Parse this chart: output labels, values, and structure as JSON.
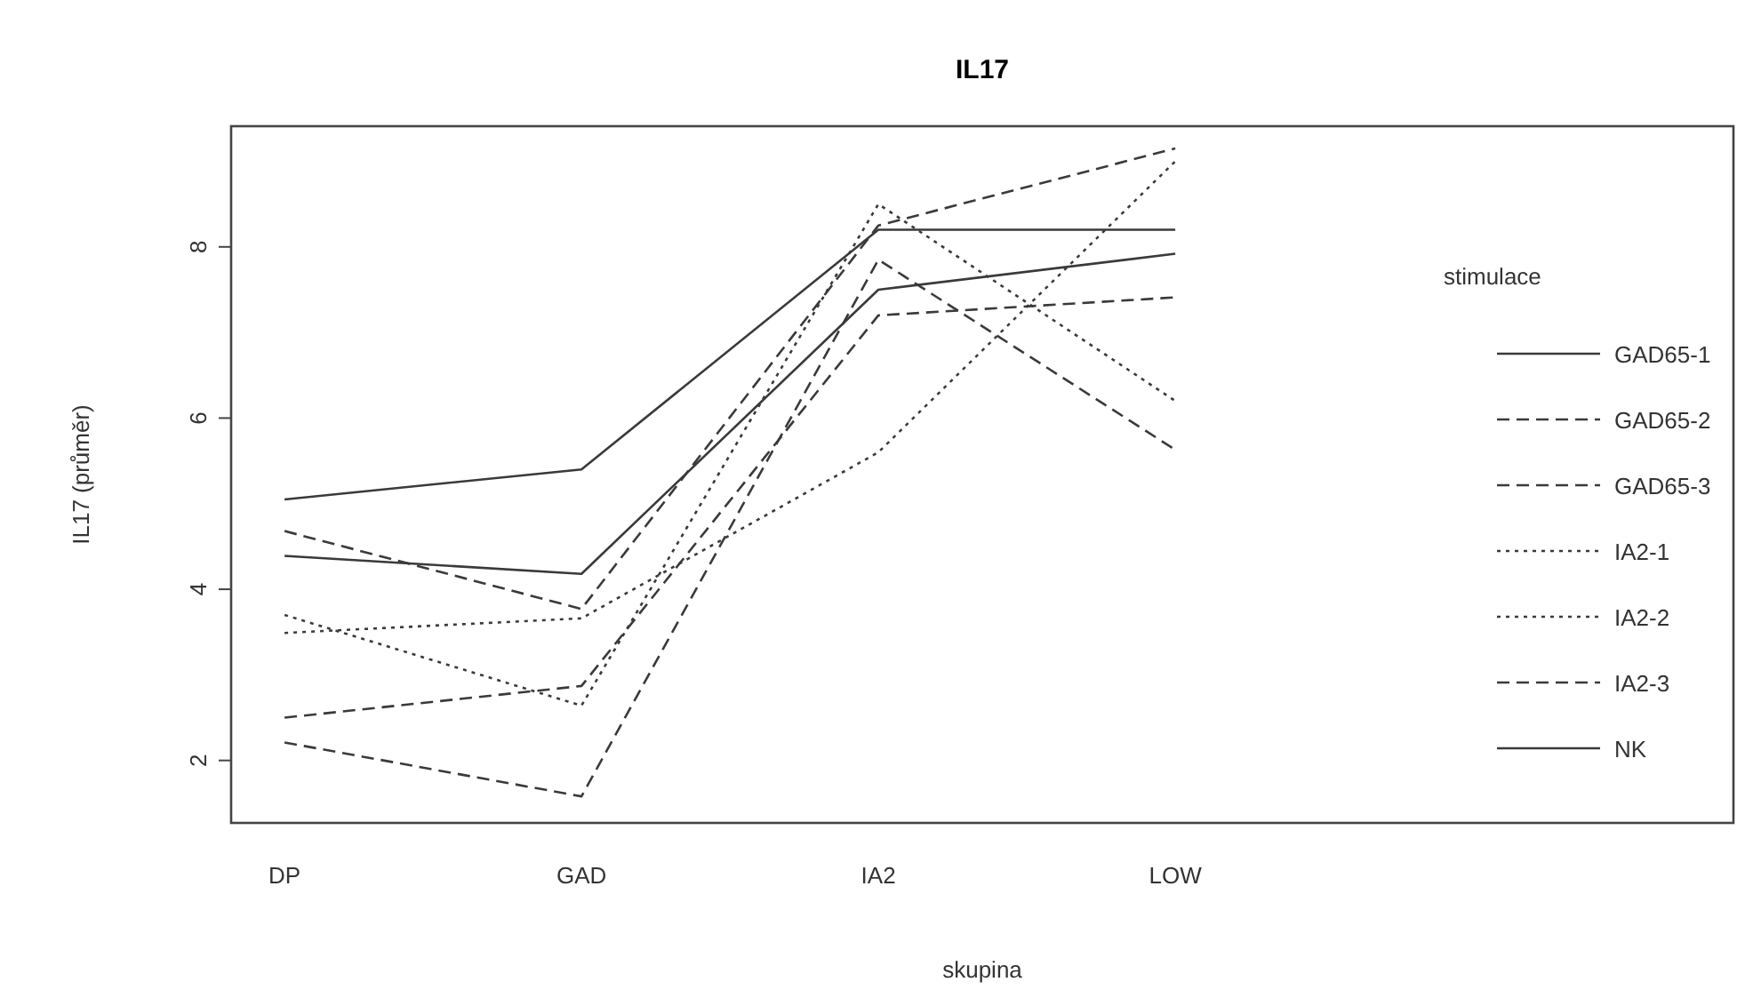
{
  "chart_data": {
    "type": "line",
    "title": "IL17",
    "xlabel": "skupina",
    "ylabel": "IL17 (průměr)",
    "legend_title": "stimulace",
    "legend": "right",
    "grid": false,
    "categories": [
      "DP",
      "GAD",
      "IA2",
      "LOW"
    ],
    "ylim": [
      1.27,
      9.41
    ],
    "yticks": [
      2,
      4,
      6,
      8
    ],
    "series": [
      {
        "name": "GAD65-1",
        "color": "#3a3a3a",
        "line_style": "solid",
        "values": [
          5.05,
          5.4,
          8.2,
          8.2
        ]
      },
      {
        "name": "GAD65-2",
        "color": "#3a3a3a",
        "line_style": "dashed",
        "values": [
          4.68,
          3.77,
          8.25,
          9.15
        ]
      },
      {
        "name": "GAD65-3",
        "color": "#3a3a3a",
        "line_style": "dashed",
        "values": [
          2.21,
          1.58,
          7.85,
          5.63
        ]
      },
      {
        "name": "IA2-1",
        "color": "#3a3a3a",
        "line_style": "dotted",
        "values": [
          3.49,
          3.66,
          5.6,
          9.0
        ]
      },
      {
        "name": "IA2-2",
        "color": "#3a3a3a",
        "line_style": "dotted",
        "values": [
          3.7,
          2.64,
          8.5,
          6.2
        ]
      },
      {
        "name": "IA2-3",
        "color": "#3a3a3a",
        "line_style": "dashed",
        "values": [
          2.5,
          2.87,
          7.2,
          7.41
        ]
      },
      {
        "name": "NK",
        "color": "#3a3a3a",
        "line_style": "solid",
        "values": [
          4.39,
          4.18,
          7.5,
          7.92
        ]
      }
    ]
  }
}
